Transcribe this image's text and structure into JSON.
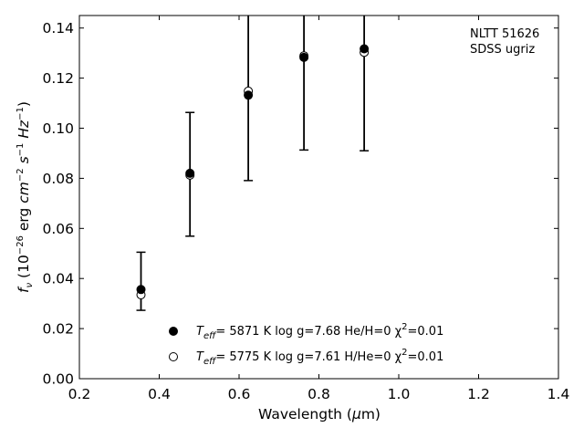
{
  "chart_data": {
    "type": "scatter",
    "xlabel": "Wavelength (μm)",
    "ylabel": "f_ν (10^{-26} erg cm^{-2} s^{-1} Hz^{-1})",
    "xlim": [
      0.2,
      1.4
    ],
    "ylim": [
      0.0,
      0.145
    ],
    "xticks": [
      "0.2",
      "0.4",
      "0.6",
      "0.8",
      "1.0",
      "1.2",
      "1.4"
    ],
    "yticks": [
      "0.00",
      "0.02",
      "0.04",
      "0.06",
      "0.08",
      "0.10",
      "0.12",
      "0.14"
    ],
    "grid": false,
    "legend_position": "bottom-center",
    "annotations": [
      "NLTT 51626",
      "SDSS ugriz"
    ],
    "observed": {
      "x": [
        0.3543,
        0.477,
        0.6231,
        0.7625,
        0.9134
      ],
      "y": [
        0.0389,
        0.0816,
        0.1122,
        0.1279,
        0.1373
      ],
      "err": [
        0.0116,
        0.0247,
        0.0331,
        0.0366,
        0.0463
      ]
    },
    "series": [
      {
        "name": "Teff= 5871 K log g=7.68 He/H=0 χ²=0.01",
        "marker": "filled-circle",
        "x": [
          0.3543,
          0.477,
          0.6231,
          0.7625,
          0.9134
        ],
        "y": [
          0.0356,
          0.082,
          0.1132,
          0.1283,
          0.1317
        ]
      },
      {
        "name": "Teff= 5775 K log g=7.61 H/He=0 χ²=0.01",
        "marker": "open-circle",
        "x": [
          0.3543,
          0.477,
          0.6231,
          0.7625,
          0.9134
        ],
        "y": [
          0.0335,
          0.0813,
          0.1148,
          0.1289,
          0.1303
        ]
      }
    ],
    "legend": [
      {
        "teff_label": "T",
        "teff_sub": "eff",
        "text": "=  5871 K  log g=7.68  He/H=0  χ",
        "sup": "2",
        "tail": "=0.01"
      },
      {
        "teff_label": "T",
        "teff_sub": "eff",
        "text": "=  5775 K  log g=7.61  H/He=0  χ",
        "sup": "2",
        "tail": "=0.01"
      }
    ]
  }
}
